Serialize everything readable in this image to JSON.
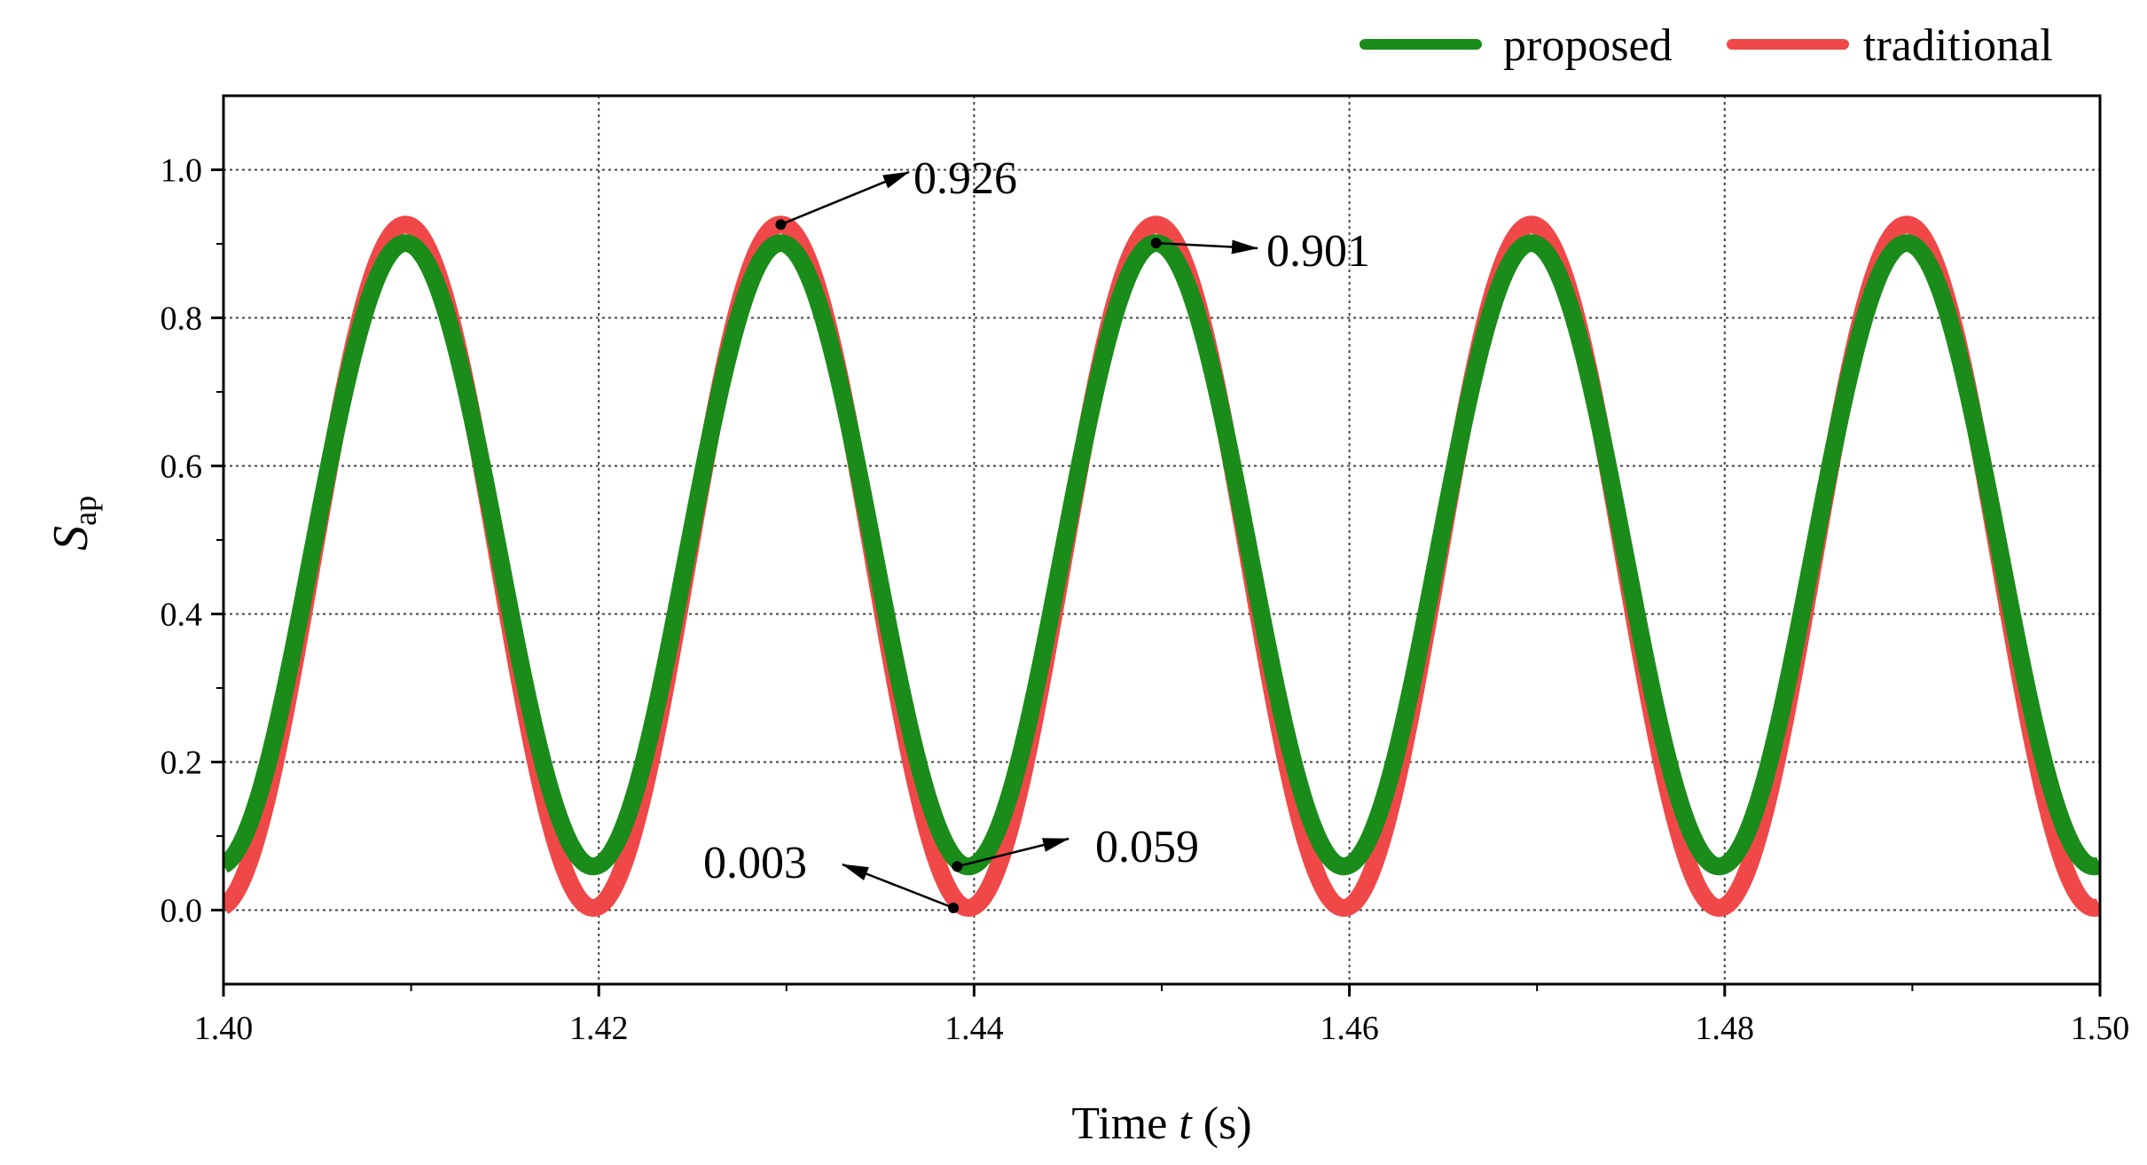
{
  "chart_data": {
    "type": "line",
    "xlabel_prefix": "Time ",
    "xlabel_var": "t",
    "xlabel_suffix": " (s)",
    "ylabel_var": "S",
    "ylabel_sub": "ap",
    "xlim": [
      1.4,
      1.5
    ],
    "ylim": [
      -0.1,
      1.1
    ],
    "xticks": [
      "1.40",
      "1.42",
      "1.44",
      "1.46",
      "1.48",
      "1.50"
    ],
    "xtick_values": [
      1.4,
      1.42,
      1.44,
      1.46,
      1.48,
      1.5
    ],
    "yticks": [
      "0.0",
      "0.2",
      "0.4",
      "0.6",
      "0.8",
      "1.0"
    ],
    "ytick_values": [
      0.0,
      0.2,
      0.4,
      0.6,
      0.8,
      1.0
    ],
    "grid": true,
    "legend_position": "top-right, above plot",
    "series": [
      {
        "name": "proposed",
        "color": "#1a8c1a",
        "waveform": "sinusoid",
        "frequency_hz": 50,
        "min": 0.059,
        "max": 0.901,
        "peak_time": 1.4097
      },
      {
        "name": "traditional",
        "color": "#f04848",
        "waveform": "sinusoid",
        "frequency_hz": 50,
        "min": 0.003,
        "max": 0.926,
        "peak_time": 1.4097
      }
    ],
    "annotations": [
      {
        "text": "0.926",
        "point": [
          1.4297,
          0.926
        ],
        "label_anchor": [
          1.4373,
          0.985
        ]
      },
      {
        "text": "0.901",
        "point": [
          1.4497,
          0.901
        ],
        "label_anchor": [
          1.4555,
          0.893
        ]
      },
      {
        "text": "0.003",
        "point": [
          1.4389,
          0.003
        ],
        "label_anchor": [
          1.433,
          0.062
        ]
      },
      {
        "text": "0.059",
        "point": [
          1.4391,
          0.059
        ],
        "label_anchor": [
          1.445,
          0.1
        ]
      }
    ]
  }
}
